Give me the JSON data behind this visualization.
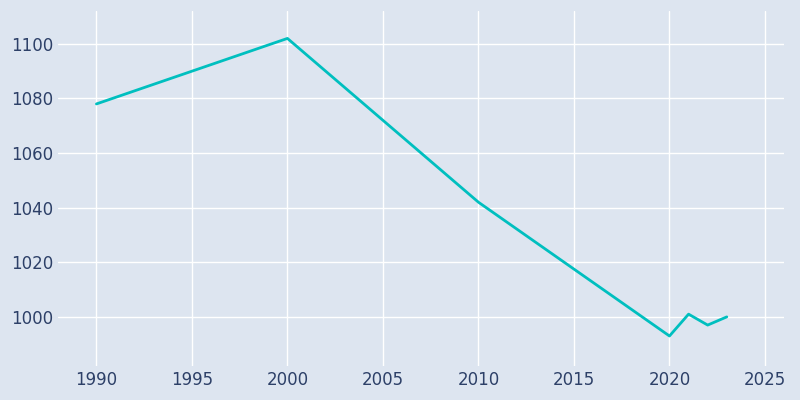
{
  "years": [
    1990,
    2000,
    2010,
    2020,
    2021,
    2022,
    2023
  ],
  "population": [
    1078,
    1102,
    1042,
    993,
    1001,
    997,
    1000
  ],
  "line_color": "#00bfbf",
  "bg_color": "#dde5f0",
  "grid_color": "#ffffff",
  "xlim": [
    1988,
    2026
  ],
  "ylim": [
    982,
    1112
  ],
  "xticks": [
    1990,
    1995,
    2000,
    2005,
    2010,
    2015,
    2020,
    2025
  ],
  "yticks": [
    1000,
    1020,
    1040,
    1060,
    1080,
    1100
  ],
  "line_width": 2.0,
  "tick_label_color": "#2d4068",
  "tick_fontsize": 12
}
